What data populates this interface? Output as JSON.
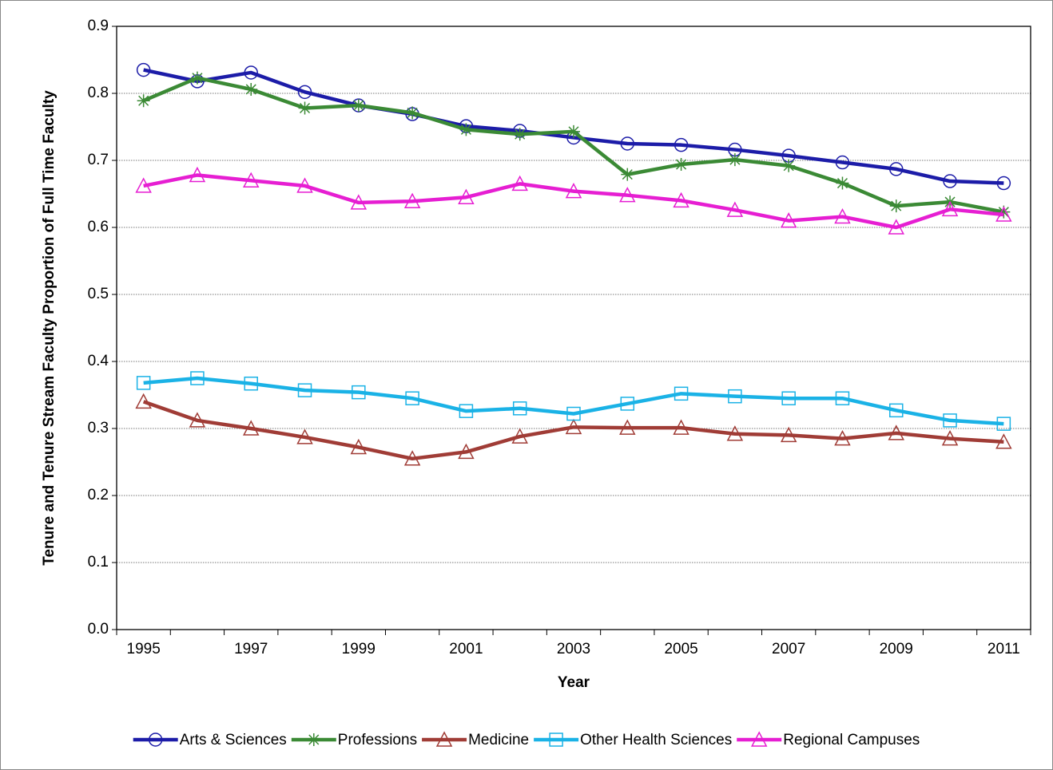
{
  "chart_data": {
    "type": "line",
    "y_label": "Tenure and Tenure Stream Faculty  Proportion of Full Time Faculty",
    "x_label": "Year",
    "categories": [
      "1995",
      null,
      "1997",
      null,
      "1999",
      null,
      "2001",
      null,
      "2003",
      null,
      "2005",
      null,
      "2007",
      null,
      "2009",
      null,
      "2011"
    ],
    "ylim": [
      0,
      0.9
    ],
    "yticks": [
      {
        "value": 0,
        "label": "0.0"
      },
      0.1,
      0.2,
      0.3,
      0.4,
      0.5,
      0.6,
      0.7,
      0.8,
      0.9
    ],
    "grid": true,
    "legend": "bottom",
    "series": [
      {
        "name": "Arts & Sciences",
        "color": "#1c1ca8",
        "marker": "circle",
        "values": [
          0.835,
          0.818,
          0.831,
          0.802,
          0.782,
          0.769,
          0.751,
          0.744,
          0.734,
          0.725,
          0.723,
          0.716,
          0.707,
          0.697,
          0.687,
          0.669,
          0.666
        ]
      },
      {
        "name": "Professions",
        "color": "#3b8a35",
        "marker": "star",
        "values": [
          0.789,
          0.823,
          0.806,
          0.778,
          0.782,
          0.771,
          0.746,
          0.739,
          0.743,
          0.679,
          0.694,
          0.701,
          0.692,
          0.666,
          0.632,
          0.638,
          0.623
        ]
      },
      {
        "name": "Medicine",
        "color": "#a03c36",
        "marker": "triangle",
        "values": [
          0.34,
          0.312,
          0.3,
          0.287,
          0.272,
          0.255,
          0.265,
          0.288,
          0.302,
          0.301,
          0.301,
          0.292,
          0.29,
          0.285,
          0.293,
          0.285,
          0.28
        ]
      },
      {
        "name": "Other Health Sciences",
        "color": "#1ab2e6",
        "marker": "square",
        "values": [
          0.368,
          0.375,
          0.367,
          0.357,
          0.354,
          0.345,
          0.326,
          0.33,
          0.322,
          0.337,
          0.352,
          0.348,
          0.345,
          0.345,
          0.327,
          0.312,
          0.307
        ]
      },
      {
        "name": "Regional Campuses",
        "color": "#e61ed2",
        "marker": "triangle",
        "values": [
          0.662,
          0.678,
          0.67,
          0.662,
          0.637,
          0.639,
          0.645,
          0.665,
          0.654,
          0.648,
          0.64,
          0.626,
          0.61,
          0.616,
          0.6,
          0.627,
          0.619
        ]
      }
    ]
  }
}
